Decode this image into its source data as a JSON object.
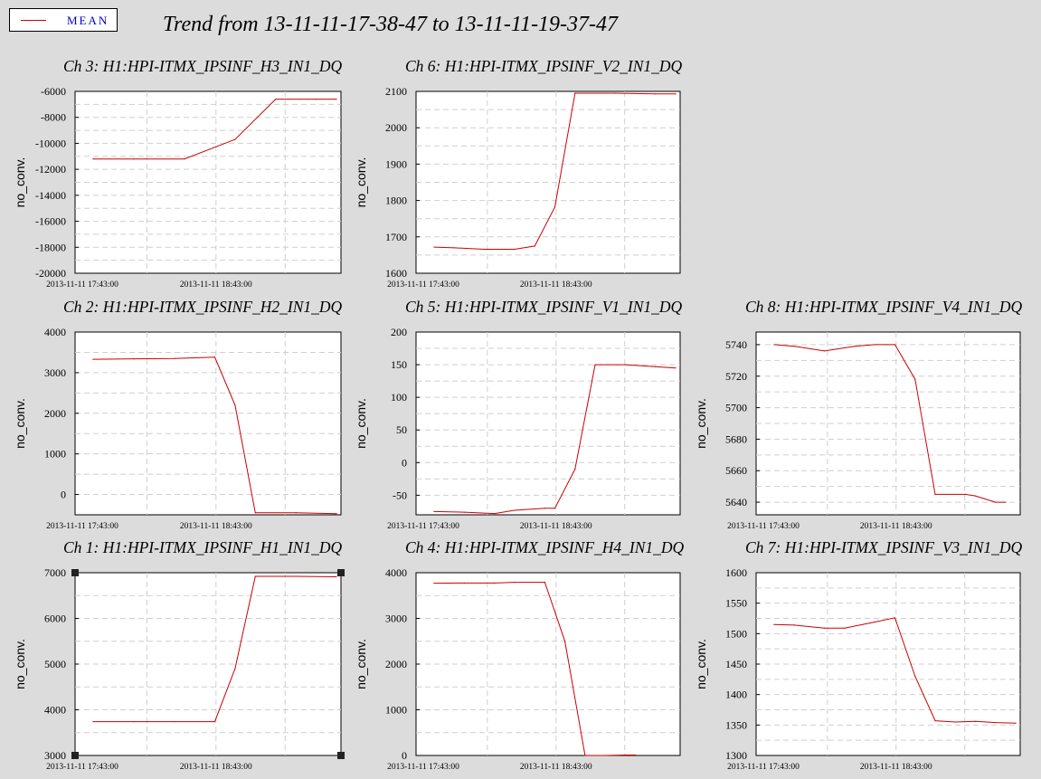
{
  "page": {
    "title": "Trend from 13-11-11-17-38-47 to 13-11-11-19-37-47"
  },
  "legend": {
    "label": "MEAN",
    "color": "#cc0000"
  },
  "chart_data": [
    {
      "id": "ch3",
      "type": "line",
      "title": "Ch 3: H1:HPI-ITMX_IPSINF_H3_IN1_DQ",
      "ylabel": "no_conv.",
      "ylim": [
        -20000,
        -6000
      ],
      "yticks": [
        -6000,
        -8000,
        -10000,
        -12000,
        -14000,
        -16000,
        -18000,
        -20000
      ],
      "xticks": [
        "2013-11-11 17:43:00",
        "2013-11-11 18:43:00"
      ],
      "grid": true,
      "x": [
        0,
        20,
        45,
        70,
        90,
        110,
        120
      ],
      "series": [
        {
          "values": [
            -11200,
            -11200,
            -11200,
            -9700,
            -6600,
            -6600,
            -6600
          ],
          "color": "#cc0000"
        }
      ]
    },
    {
      "id": "ch6",
      "type": "line",
      "title": "Ch 6: H1:HPI-ITMX_IPSINF_V2_IN1_DQ",
      "ylabel": "no_conv.",
      "ylim": [
        1600,
        2100
      ],
      "yticks": [
        2100,
        2000,
        1900,
        1800,
        1700,
        1600
      ],
      "xticks": [
        "2013-11-11 17:43:00",
        "2013-11-11 18:43:00"
      ],
      "grid": true,
      "x": [
        0,
        10,
        25,
        40,
        50,
        60,
        70,
        90,
        110,
        120
      ],
      "series": [
        {
          "values": [
            1672,
            1670,
            1666,
            1666,
            1675,
            1782,
            2095,
            2095,
            2093,
            2093
          ],
          "color": "#cc0000"
        }
      ]
    },
    {
      "id": "ch2",
      "type": "line",
      "title": "Ch 2: H1:HPI-ITMX_IPSINF_H2_IN1_DQ",
      "ylabel": "no_conv.",
      "ylim": [
        -500,
        4000
      ],
      "yticks": [
        4000,
        3000,
        2000,
        1000,
        0
      ],
      "xticks": [
        "2013-11-11 17:43:00",
        "2013-11-11 18:43:00"
      ],
      "grid": true,
      "x": [
        0,
        20,
        40,
        60,
        70,
        80,
        100,
        120
      ],
      "series": [
        {
          "values": [
            3330,
            3340,
            3350,
            3380,
            2200,
            -450,
            -450,
            -470
          ],
          "color": "#cc0000"
        }
      ]
    },
    {
      "id": "ch5",
      "type": "line",
      "title": "Ch 5: H1:HPI-ITMX_IPSINF_V1_IN1_DQ",
      "ylabel": "no_conv.",
      "ylim": [
        -80,
        200
      ],
      "yticks": [
        200,
        150,
        100,
        50,
        0,
        -50
      ],
      "xticks": [
        "2013-11-11 17:43:00",
        "2013-11-11 18:43:00"
      ],
      "grid": true,
      "x": [
        0,
        15,
        30,
        40,
        55,
        60,
        70,
        80,
        95,
        110,
        120
      ],
      "series": [
        {
          "values": [
            -75,
            -76,
            -78,
            -73,
            -70,
            -70,
            -10,
            150,
            150,
            147,
            145
          ],
          "color": "#cc0000"
        }
      ]
    },
    {
      "id": "ch8",
      "type": "line",
      "title": "Ch 8: H1:HPI-ITMX_IPSINF_V4_IN1_DQ",
      "ylabel": "no_conv.",
      "ylim": [
        5632,
        5748
      ],
      "yticks": [
        5740,
        5720,
        5700,
        5680,
        5660,
        5640
      ],
      "xticks": [
        "2013-11-11 17:43:00",
        "2013-11-11 18:43:00"
      ],
      "grid": true,
      "x": [
        0,
        10,
        25,
        40,
        50,
        60,
        70,
        80,
        95,
        100,
        110,
        115
      ],
      "series": [
        {
          "values": [
            5740,
            5739,
            5736,
            5739,
            5740,
            5740,
            5718,
            5645,
            5645,
            5644,
            5640,
            5640
          ],
          "color": "#cc0000"
        }
      ]
    },
    {
      "id": "ch1",
      "type": "line",
      "title": "Ch 1: H1:HPI-ITMX_IPSINF_H1_IN1_DQ",
      "ylabel": "no_conv.",
      "ylim": [
        3000,
        7000
      ],
      "yticks": [
        7000,
        6000,
        5000,
        4000,
        3000
      ],
      "xticks": [
        "2013-11-11 17:43:00",
        "2013-11-11 18:43:00"
      ],
      "grid": true,
      "selected": true,
      "x": [
        0,
        20,
        40,
        60,
        70,
        80,
        100,
        120
      ],
      "series": [
        {
          "values": [
            3740,
            3740,
            3740,
            3740,
            4900,
            6920,
            6920,
            6910
          ],
          "color": "#cc0000"
        }
      ]
    },
    {
      "id": "ch4",
      "type": "line",
      "title": "Ch 4: H1:HPI-ITMX_IPSINF_H4_IN1_DQ",
      "ylabel": "no_conv.",
      "ylim": [
        0,
        4000
      ],
      "yticks": [
        4000,
        3000,
        2000,
        1000,
        0
      ],
      "xticks": [
        "2013-11-11 17:43:00",
        "2013-11-11 18:43:00"
      ],
      "grid": true,
      "x": [
        0,
        15,
        30,
        40,
        55,
        65,
        75,
        85,
        95,
        100
      ],
      "series": [
        {
          "values": [
            3770,
            3775,
            3775,
            3790,
            3790,
            2500,
            0,
            0,
            10,
            10
          ],
          "color": "#cc0000"
        }
      ]
    },
    {
      "id": "ch7",
      "type": "line",
      "title": "Ch 7: H1:HPI-ITMX_IPSINF_V3_IN1_DQ",
      "ylabel": "no_conv.",
      "ylim": [
        1300,
        1600
      ],
      "yticks": [
        1600,
        1550,
        1500,
        1450,
        1400,
        1350,
        1300
      ],
      "xticks": [
        "2013-11-11 17:43:00",
        "2013-11-11 18:43:00"
      ],
      "grid": true,
      "x": [
        0,
        10,
        25,
        35,
        50,
        60,
        70,
        80,
        90,
        100,
        110,
        120
      ],
      "series": [
        {
          "values": [
            1515,
            1514,
            1509,
            1509,
            1519,
            1526,
            1430,
            1357,
            1355,
            1356,
            1354,
            1353
          ],
          "color": "#cc0000"
        }
      ]
    }
  ]
}
